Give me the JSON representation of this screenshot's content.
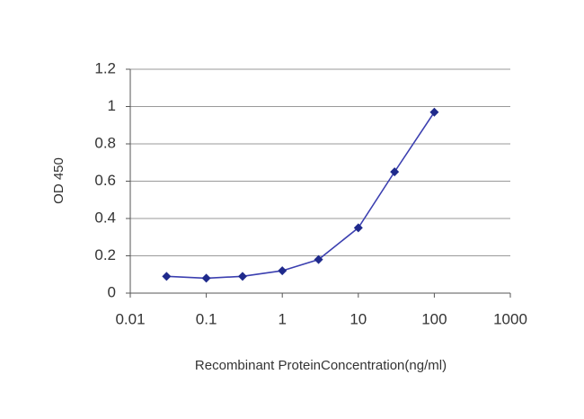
{
  "chart_data": {
    "type": "line",
    "xlabel": "Recombinant ProteinConcentration(ng/ml)",
    "ylabel": "OD 450",
    "x": [
      0.03,
      0.1,
      0.3,
      1,
      3,
      10,
      30,
      100
    ],
    "values": [
      0.09,
      0.08,
      0.09,
      0.12,
      0.18,
      0.35,
      0.65,
      0.97
    ],
    "color": "#3b3fb0",
    "marker_color": "#1f2a8c",
    "xscale": "log",
    "xlim": [
      0.01,
      1000
    ],
    "xticks": [
      0.01,
      0.1,
      1,
      10,
      100,
      1000
    ],
    "ylim": [
      0,
      1.2
    ],
    "yticks": [
      0,
      0.2,
      0.4,
      0.6,
      0.8,
      1,
      1.2
    ],
    "grid": true
  }
}
